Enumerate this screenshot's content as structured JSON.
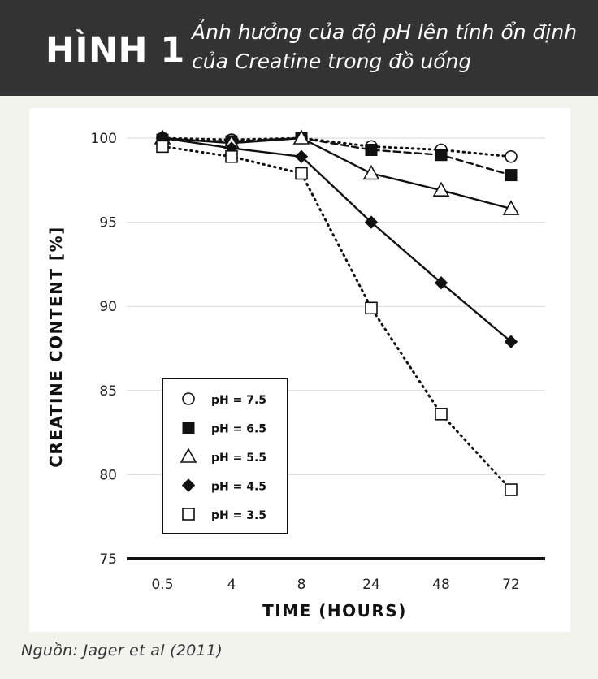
{
  "header": {
    "figure_label": "HÌNH 1",
    "title": "Ảnh hưởng của độ pH lên tính ổn định của Creatine trong đồ uống"
  },
  "source": "Nguồn: Jager et al (2011)",
  "colors": {
    "header_bg": "#333333",
    "ink": "#111111",
    "gridline": "#d9d9d9"
  },
  "chart_data": {
    "type": "line",
    "title": "",
    "xlabel": "TIME (HOURS)",
    "ylabel": "CREATINE CONTENT [%]",
    "categories": [
      "0.5",
      "4",
      "8",
      "24",
      "48",
      "72"
    ],
    "yticks": [
      100,
      95,
      90,
      85,
      80,
      75
    ],
    "ylim": [
      75,
      100
    ],
    "grid": true,
    "legend_placement": "bottom-left",
    "series": [
      {
        "name": "pH = 7.5",
        "marker": "circle-open",
        "line": "dotted",
        "values": [
          100,
          99.9,
          100,
          99.5,
          99.3,
          98.9
        ]
      },
      {
        "name": "pH = 6.5",
        "marker": "square-filled",
        "line": "dashed",
        "values": [
          99.9,
          99.8,
          100,
          99.3,
          99.0,
          97.8
        ]
      },
      {
        "name": "pH = 5.5",
        "marker": "triangle-open",
        "line": "solid",
        "values": [
          100,
          99.7,
          100,
          97.9,
          96.9,
          95.8
        ]
      },
      {
        "name": "pH = 4.5",
        "marker": "diamond-filled",
        "line": "solid",
        "values": [
          100,
          99.4,
          98.9,
          95.0,
          91.4,
          87.9
        ]
      },
      {
        "name": "pH = 3.5",
        "marker": "square-open",
        "line": "dotted",
        "values": [
          99.5,
          98.9,
          97.9,
          89.9,
          83.6,
          79.1
        ]
      }
    ]
  }
}
